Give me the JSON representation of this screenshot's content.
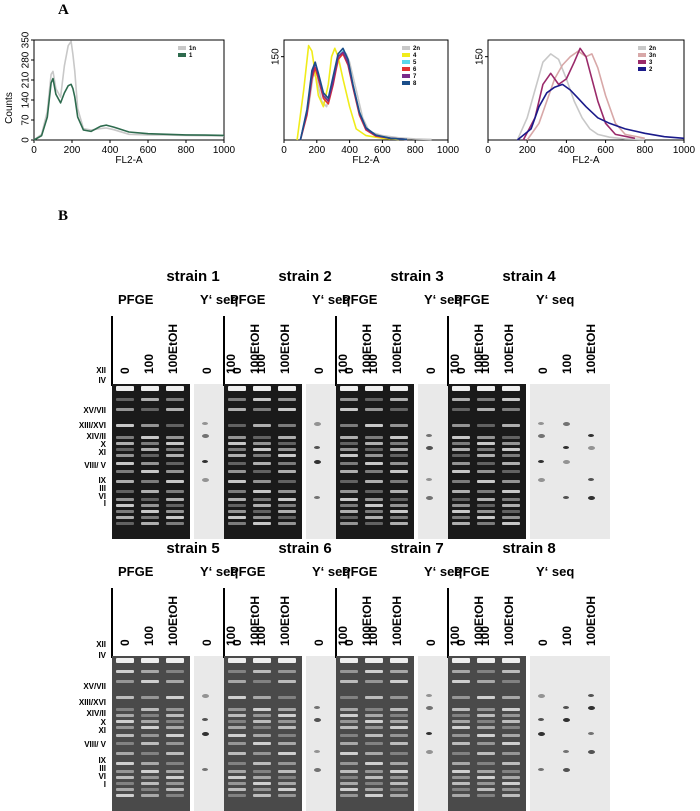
{
  "panel_a_label": "A",
  "panel_b_label": "B",
  "chart_data": [
    {
      "type": "line",
      "xlabel": "FL2-A",
      "ylabel": "Counts",
      "xlim": [
        0,
        1000
      ],
      "ylim": [
        0,
        350
      ],
      "x_ticks": [
        "0",
        "200",
        "400",
        "600",
        "800",
        "1000"
      ],
      "y_ticks": [
        "0",
        "70",
        "140",
        "210",
        "280",
        "350"
      ],
      "legend_position": "top-right",
      "series": [
        {
          "name": "1n",
          "color": "#c8c8c8",
          "x": [
            0,
            40,
            70,
            90,
            100,
            115,
            140,
            160,
            180,
            195,
            205,
            215,
            230,
            260,
            300,
            350,
            380,
            420,
            500,
            600,
            700,
            800,
            900,
            1000
          ],
          "y": [
            0,
            20,
            100,
            230,
            240,
            180,
            150,
            260,
            330,
            345,
            300,
            240,
            110,
            40,
            35,
            40,
            42,
            36,
            20,
            18,
            17,
            16,
            15,
            14
          ]
        },
        {
          "name": "1",
          "color": "#2e6b4e",
          "x": [
            0,
            40,
            70,
            90,
            100,
            115,
            140,
            160,
            180,
            195,
            205,
            215,
            230,
            260,
            300,
            350,
            380,
            420,
            500,
            600,
            700,
            800,
            900,
            1000
          ],
          "y": [
            0,
            15,
            80,
            200,
            215,
            160,
            130,
            165,
            190,
            195,
            180,
            150,
            80,
            35,
            30,
            48,
            52,
            45,
            28,
            22,
            20,
            18,
            17,
            16
          ]
        }
      ]
    },
    {
      "type": "line",
      "xlabel": "FL2-A",
      "ylabel": "",
      "xlim": [
        0,
        1000
      ],
      "ylim": [
        0,
        180
      ],
      "x_ticks": [
        "0",
        "200",
        "400",
        "600",
        "800",
        "1000"
      ],
      "y_ticks": [
        "150"
      ],
      "legend_position": "top-right",
      "series": [
        {
          "name": "2n",
          "color": "#c8c8c8",
          "x": [
            100,
            150,
            180,
            200,
            230,
            260,
            300,
            340,
            360,
            380,
            400,
            440,
            480,
            520,
            600,
            700,
            800,
            900
          ],
          "y": [
            0,
            60,
            120,
            110,
            70,
            60,
            110,
            150,
            160,
            155,
            140,
            90,
            40,
            15,
            8,
            4,
            2,
            1
          ]
        },
        {
          "name": "4",
          "color": "#f0ec1a",
          "x": [
            80,
            120,
            150,
            170,
            190,
            210,
            240,
            270,
            290,
            310,
            330,
            360,
            400,
            440,
            500,
            600,
            700
          ],
          "y": [
            0,
            90,
            170,
            160,
            120,
            80,
            60,
            100,
            150,
            165,
            150,
            110,
            60,
            20,
            8,
            3,
            1
          ]
        },
        {
          "name": "5",
          "color": "#5ad7ea",
          "x": [
            100,
            140,
            170,
            190,
            210,
            240,
            270,
            300,
            330,
            360,
            390,
            420,
            460,
            500,
            560,
            650,
            750
          ],
          "y": [
            0,
            50,
            120,
            135,
            115,
            80,
            70,
            110,
            150,
            160,
            140,
            100,
            50,
            20,
            8,
            3,
            1
          ]
        },
        {
          "name": "6",
          "color": "#e03030",
          "x": [
            100,
            140,
            170,
            190,
            210,
            240,
            270,
            300,
            330,
            360,
            390,
            420,
            460,
            500,
            560,
            650,
            750
          ],
          "y": [
            0,
            45,
            110,
            130,
            110,
            75,
            65,
            100,
            145,
            155,
            135,
            95,
            45,
            18,
            7,
            3,
            1
          ]
        },
        {
          "name": "7",
          "color": "#7a2a8a",
          "x": [
            100,
            140,
            170,
            190,
            210,
            240,
            270,
            300,
            330,
            360,
            390,
            420,
            460,
            500,
            560,
            650,
            750
          ],
          "y": [
            0,
            50,
            115,
            140,
            115,
            80,
            70,
            105,
            150,
            158,
            138,
            98,
            48,
            20,
            8,
            3,
            1
          ]
        },
        {
          "name": "8",
          "color": "#1a4e8a",
          "x": [
            100,
            140,
            170,
            190,
            210,
            240,
            270,
            300,
            330,
            360,
            390,
            420,
            460,
            500,
            560,
            650,
            750
          ],
          "y": [
            0,
            55,
            125,
            140,
            120,
            85,
            75,
            115,
            155,
            165,
            145,
            100,
            50,
            22,
            9,
            3,
            1
          ]
        }
      ]
    },
    {
      "type": "line",
      "xlabel": "FL2-A",
      "ylabel": "",
      "xlim": [
        0,
        1000
      ],
      "ylim": [
        0,
        180
      ],
      "x_ticks": [
        "0",
        "200",
        "400",
        "600",
        "800",
        "1000"
      ],
      "y_ticks": [
        "150"
      ],
      "legend_position": "top-right",
      "series": [
        {
          "name": "2n",
          "color": "#c8c8c8",
          "x": [
            150,
            200,
            240,
            280,
            320,
            360,
            400,
            440,
            480,
            520,
            560,
            620,
            700,
            800
          ],
          "y": [
            0,
            40,
            90,
            140,
            155,
            145,
            110,
            70,
            40,
            20,
            10,
            5,
            2,
            1
          ]
        },
        {
          "name": "3n",
          "color": "#d8a8a8",
          "x": [
            200,
            260,
            300,
            340,
            380,
            420,
            460,
            500,
            530,
            560,
            600,
            650,
            700,
            800
          ],
          "y": [
            0,
            30,
            70,
            110,
            135,
            150,
            160,
            150,
            155,
            130,
            80,
            30,
            10,
            3
          ]
        },
        {
          "name": "3",
          "color": "#9a2a6a",
          "x": [
            180,
            240,
            280,
            320,
            360,
            400,
            440,
            470,
            500,
            530,
            560,
            600,
            650,
            750
          ],
          "y": [
            0,
            40,
            100,
            120,
            100,
            110,
            140,
            165,
            150,
            110,
            70,
            30,
            10,
            3
          ]
        },
        {
          "name": "2",
          "color": "#1a1a8a",
          "x": [
            150,
            220,
            260,
            300,
            340,
            380,
            420,
            460,
            500,
            560,
            620,
            700,
            800,
            900,
            1000
          ],
          "y": [
            0,
            20,
            60,
            85,
            95,
            100,
            90,
            75,
            60,
            40,
            30,
            20,
            12,
            6,
            3
          ]
        }
      ]
    }
  ],
  "strains": [
    {
      "title": "strain 1",
      "pfge": "PFGE",
      "yseq": "Y‘ seq",
      "lanes": [
        "0",
        "100",
        "100EtOH"
      ],
      "blot_lanes": [
        "0",
        "100",
        "100EtOH"
      ]
    },
    {
      "title": "strain 2",
      "pfge": "PFGE",
      "yseq": "Y‘ seq",
      "lanes": [
        "0",
        "100",
        "100EtOH"
      ],
      "blot_lanes": [
        "0",
        "100",
        "100EtOH"
      ]
    },
    {
      "title": "strain 3",
      "pfge": "PFGE",
      "yseq": "Y‘ seq",
      "lanes": [
        "0",
        "100",
        "100EtOH"
      ],
      "blot_lanes": [
        "0",
        "100",
        "100EtOH"
      ]
    },
    {
      "title": "strain 4",
      "pfge": "PFGE",
      "yseq": "Y‘ seq",
      "lanes": [
        "0",
        "100",
        "100EtOH"
      ],
      "blot_lanes": [
        "0",
        "100",
        "100EtOH"
      ]
    },
    {
      "title": "strain 5",
      "pfge": "PFGE",
      "yseq": "Y‘ seq",
      "lanes": [
        "0",
        "100",
        "100EtOH"
      ],
      "blot_lanes": [
        "0",
        "100",
        "100EtOH"
      ]
    },
    {
      "title": "strain 6",
      "pfge": "PFGE",
      "yseq": "Y‘ seq",
      "lanes": [
        "0",
        "100",
        "100EtOH"
      ],
      "blot_lanes": [
        "0",
        "100",
        "100EtOH"
      ]
    },
    {
      "title": "strain 7",
      "pfge": "PFGE",
      "yseq": "Y‘ seq",
      "lanes": [
        "0",
        "100",
        "100EtOH"
      ],
      "blot_lanes": [
        "0",
        "100",
        "100EtOH"
      ]
    },
    {
      "title": "strain 8",
      "pfge": "PFGE",
      "yseq": "Y‘ seq",
      "lanes": [
        "0",
        "100",
        "100EtOH"
      ],
      "blot_lanes": [
        "0",
        "100",
        "100EtOH"
      ]
    }
  ],
  "chromosome_labels": [
    "XII",
    "IV",
    "XV/VII",
    "XIII/XVI",
    "XIV/II",
    "X",
    "XI",
    "VIII/ V",
    "IX",
    "III",
    "VI",
    "I"
  ]
}
